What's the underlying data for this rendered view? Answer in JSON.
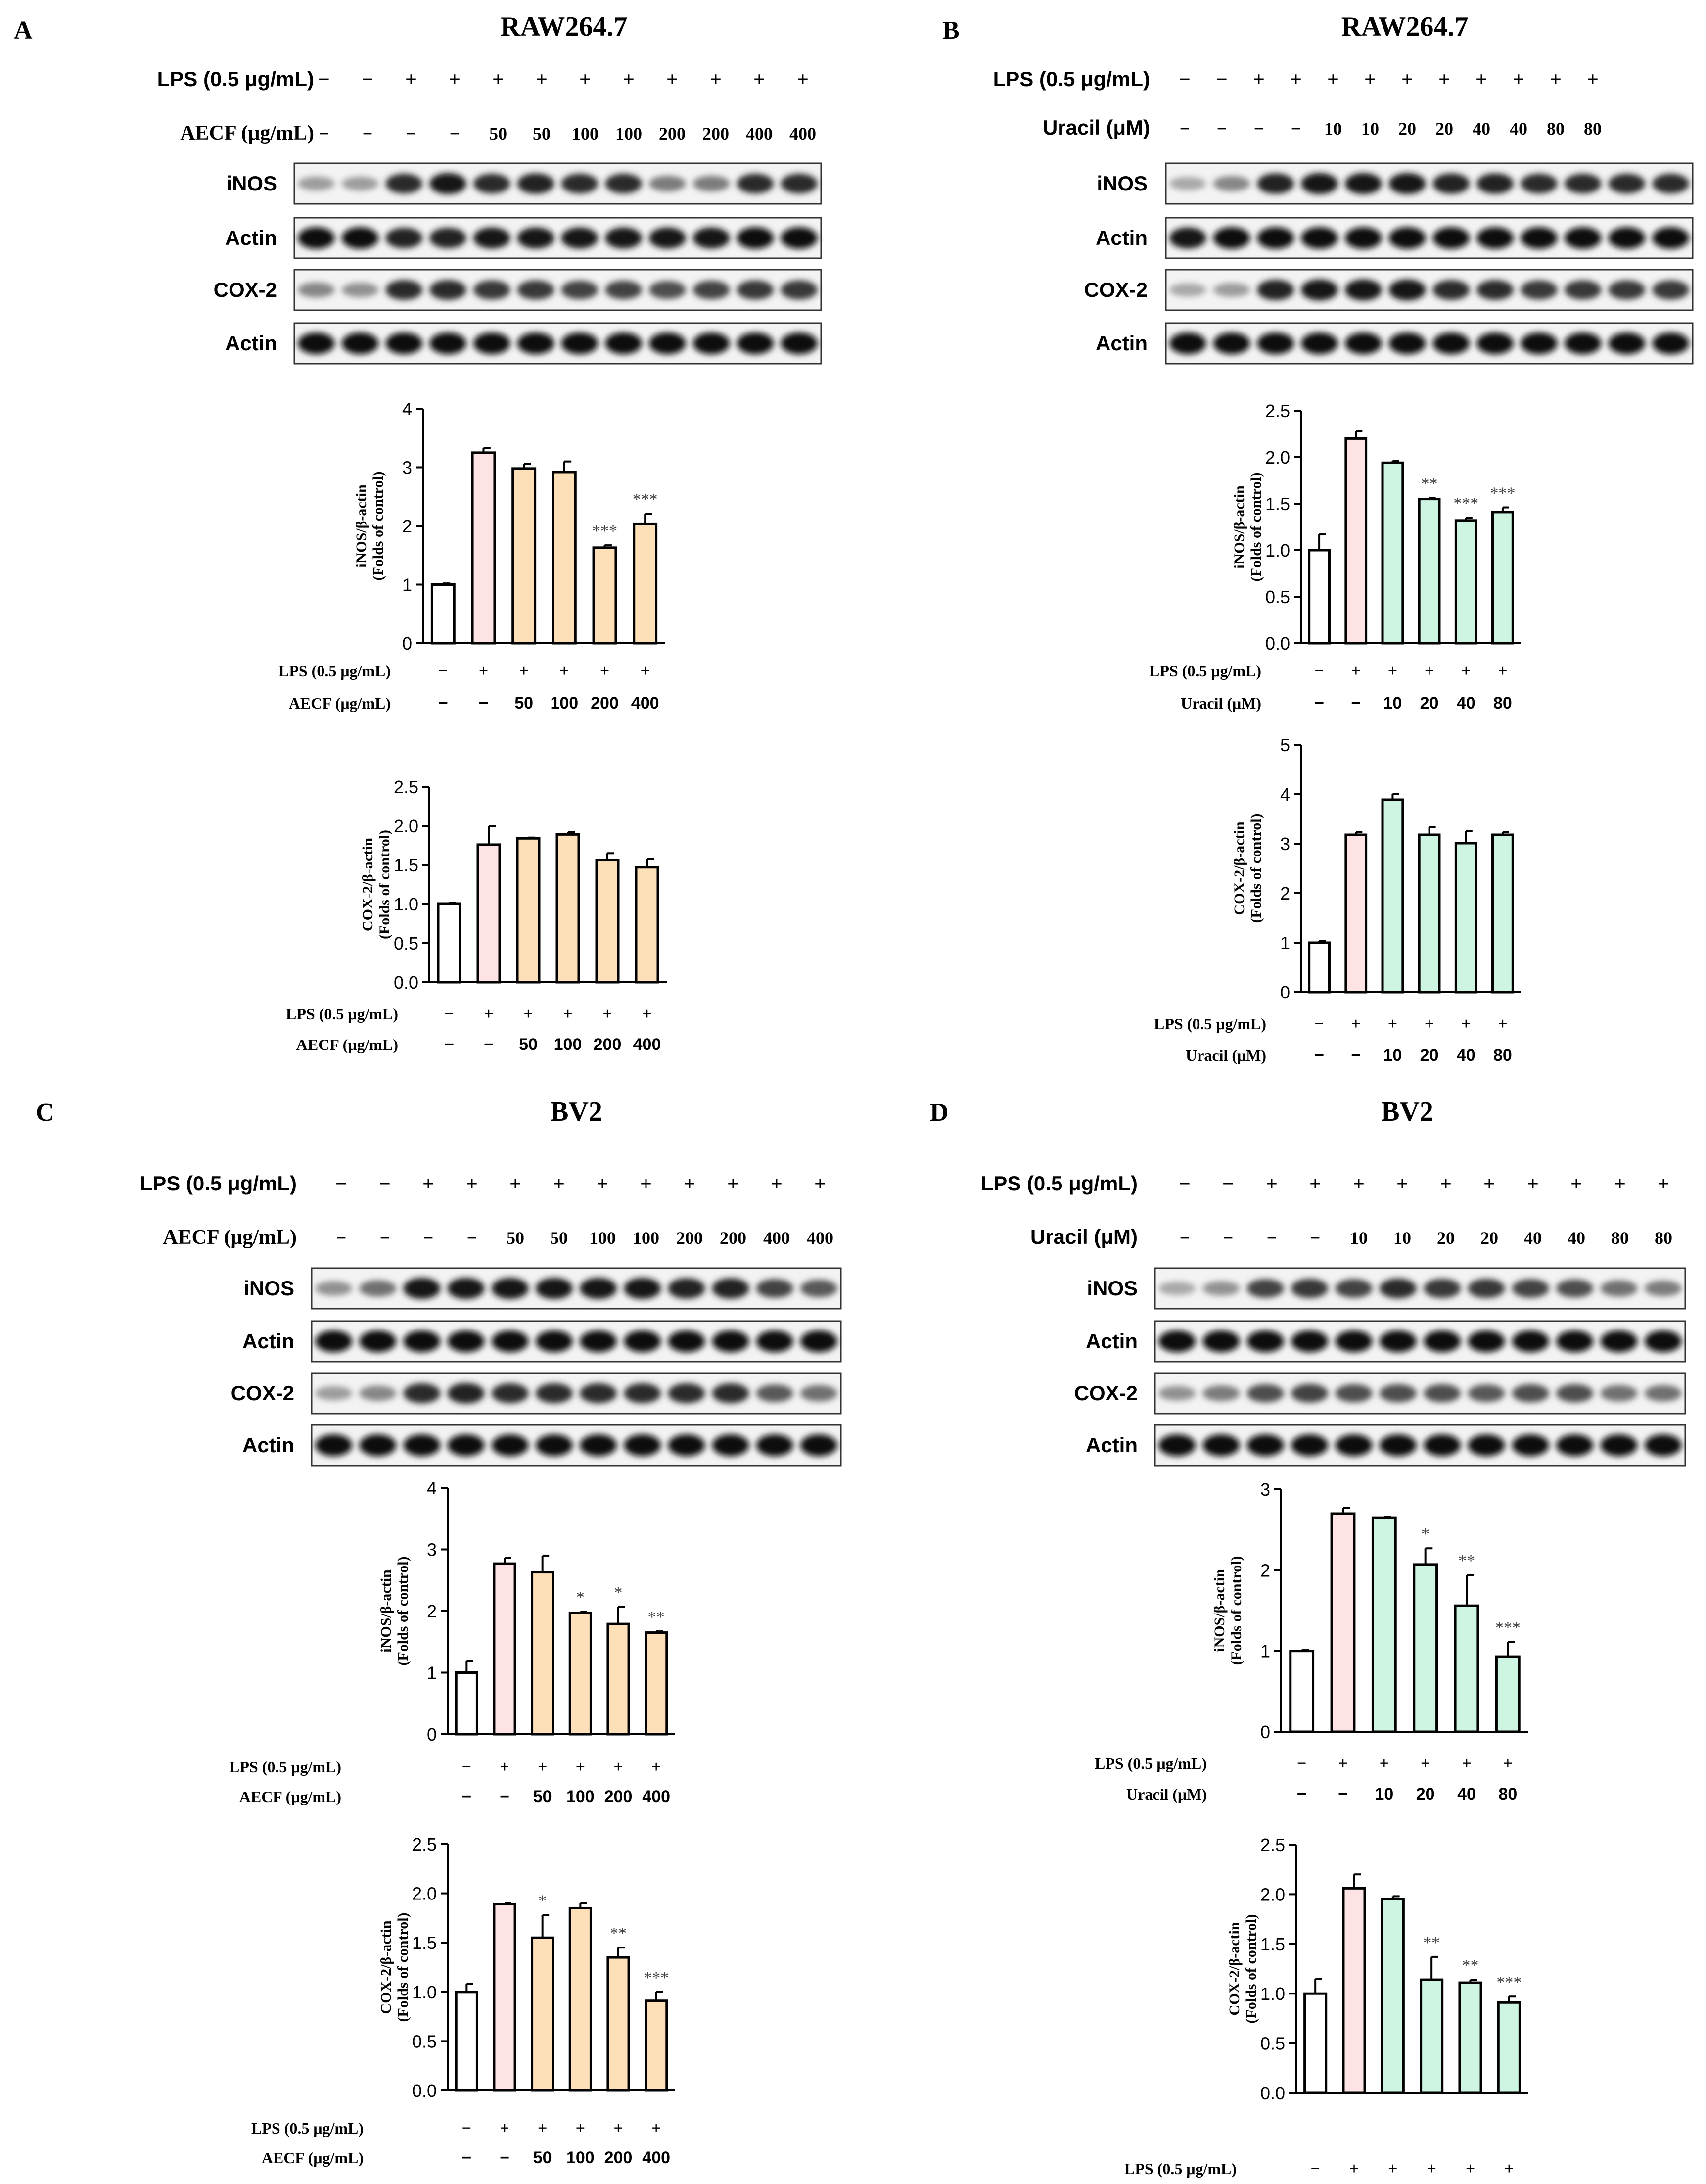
{
  "figure": {
    "panels": [
      {
        "letter": "A",
        "cell_line": "RAW264.7",
        "treatment_label": "AECF (μg/mL)",
        "lps_label": "LPS (0.5 μg/mL)",
        "blot_lps_row": [
          "−",
          "−",
          "+",
          "+",
          "+",
          "+",
          "+",
          "+",
          "+",
          "+",
          "+",
          "+"
        ],
        "blot_treat_row": [
          "−",
          "−",
          "−",
          "−",
          "50",
          "50",
          "100",
          "100",
          "200",
          "200",
          "400",
          "400"
        ],
        "blot_rows": [
          "iNOS",
          "Actin",
          "COX-2",
          "Actin"
        ],
        "x_lps": [
          "−",
          "+",
          "+",
          "+",
          "+",
          "+"
        ],
        "x_treat": [
          "−",
          "−",
          "50",
          "100",
          "200",
          "400"
        ],
        "x_lps_label": "LPS (0.5 μg/mL)",
        "x_treat_label": "AECF (μg/mL)"
      },
      {
        "letter": "B",
        "cell_line": "RAW264.7",
        "treatment_label": "Uracil (μM)",
        "lps_label": "LPS (0.5 μg/mL)",
        "blot_lps_row": [
          "−",
          "−",
          "+",
          "+",
          "+",
          "+",
          "+",
          "+",
          "+",
          "+",
          "+",
          "+"
        ],
        "blot_treat_row": [
          "−",
          "−",
          "−",
          "−",
          "10",
          "10",
          "20",
          "20",
          "40",
          "40",
          "80",
          "80"
        ],
        "blot_rows": [
          "iNOS",
          "Actin",
          "COX-2",
          "Actin"
        ],
        "x_lps": [
          "−",
          "+",
          "+",
          "+",
          "+",
          "+"
        ],
        "x_treat": [
          "−",
          "−",
          "10",
          "20",
          "40",
          "80"
        ],
        "x_lps_label": "LPS (0.5 μg/mL)",
        "x_treat_label": "Uracil (μM)"
      },
      {
        "letter": "C",
        "cell_line": "BV2",
        "treatment_label": "AECF (μg/mL)",
        "lps_label": "LPS (0.5 μg/mL)",
        "blot_lps_row": [
          "−",
          "−",
          "+",
          "+",
          "+",
          "+",
          "+",
          "+",
          "+",
          "+",
          "+",
          "+"
        ],
        "blot_treat_row": [
          "−",
          "−",
          "−",
          "−",
          "50",
          "50",
          "100",
          "100",
          "200",
          "200",
          "400",
          "400"
        ],
        "blot_rows": [
          "iNOS",
          "Actin",
          "COX-2",
          "Actin"
        ],
        "x_lps": [
          "−",
          "+",
          "+",
          "+",
          "+",
          "+"
        ],
        "x_treat": [
          "−",
          "−",
          "50",
          "100",
          "200",
          "400"
        ],
        "x_lps_label": "LPS (0.5 μg/mL)",
        "x_treat_label": "AECF (μg/mL)"
      },
      {
        "letter": "D",
        "cell_line": "BV2",
        "treatment_label": "Uracil (μM)",
        "lps_label": "LPS (0.5 μg/mL)",
        "blot_lps_row": [
          "−",
          "−",
          "+",
          "+",
          "+",
          "+",
          "+",
          "+",
          "+",
          "+",
          "+",
          "+"
        ],
        "blot_treat_row": [
          "−",
          "−",
          "−",
          "−",
          "10",
          "10",
          "20",
          "20",
          "40",
          "40",
          "80",
          "80"
        ],
        "blot_rows": [
          "iNOS",
          "Actin",
          "COX-2",
          "Actin"
        ],
        "x_lps": [
          "−",
          "+",
          "+",
          "+",
          "+",
          "+"
        ],
        "x_treat": [
          "−",
          "−",
          "10",
          "20",
          "40",
          "80"
        ],
        "x_lps_label": "LPS (0.5 μg/mL)",
        "x_treat_label": "Uracil (μM)"
      }
    ]
  },
  "colors": {
    "control": "#ffffff",
    "lps": "#fde3e3",
    "aecf": "#fde0b8",
    "uracil": "#cdf5e2",
    "axis": "#000000"
  },
  "chart_data": [
    {
      "id": "A-iNOS",
      "type": "bar",
      "ylabel": [
        "iNOS/β-actin",
        "(Folds of control)"
      ],
      "ylim": [
        0,
        4
      ],
      "ticks": [
        "0",
        "1",
        "2",
        "3",
        "4"
      ],
      "values": [
        1.0,
        3.25,
        2.98,
        2.92,
        1.63,
        2.03
      ],
      "errors": [
        0.02,
        0.08,
        0.08,
        0.18,
        0.04,
        0.18
      ],
      "sig": [
        "",
        "",
        "",
        "",
        "***",
        "***"
      ],
      "fill": "aecf"
    },
    {
      "id": "A-COX2",
      "type": "bar",
      "ylabel": [
        "COX-2/β-actin",
        "(Folds of control)"
      ],
      "ylim": [
        0,
        2.5
      ],
      "ticks": [
        "0.0",
        "0.5",
        "1.0",
        "1.5",
        "2.0",
        "2.5"
      ],
      "values": [
        1.0,
        1.76,
        1.84,
        1.89,
        1.56,
        1.47
      ],
      "errors": [
        0.01,
        0.24,
        0.01,
        0.03,
        0.09,
        0.1
      ],
      "sig": [
        "",
        "",
        "",
        "",
        "",
        ""
      ],
      "fill": "aecf"
    },
    {
      "id": "B-iNOS",
      "type": "bar",
      "ylabel": [
        "iNOS/β-actin",
        "(Folds of control)"
      ],
      "ylim": [
        0,
        2.5
      ],
      "ticks": [
        "0.0",
        "0.5",
        "1.0",
        "1.5",
        "2.0",
        "2.5"
      ],
      "values": [
        1.0,
        2.2,
        1.94,
        1.55,
        1.32,
        1.41
      ],
      "errors": [
        0.17,
        0.08,
        0.02,
        0.01,
        0.03,
        0.05
      ],
      "sig": [
        "",
        "",
        "",
        "**",
        "***",
        "***"
      ],
      "fill": "uracil"
    },
    {
      "id": "B-COX2",
      "type": "bar",
      "ylabel": [
        "COX-2/β-actin",
        "(Folds of control)"
      ],
      "ylim": [
        0,
        5
      ],
      "ticks": [
        "0",
        "1",
        "2",
        "3",
        "4",
        "5"
      ],
      "values": [
        1.0,
        3.18,
        3.89,
        3.18,
        3.01,
        3.18
      ],
      "errors": [
        0.03,
        0.05,
        0.12,
        0.16,
        0.24,
        0.05
      ],
      "sig": [
        "",
        "",
        "",
        "",
        "",
        ""
      ],
      "fill": "uracil"
    },
    {
      "id": "C-iNOS",
      "type": "bar",
      "ylabel": [
        "iNOS/β-actin",
        "(Folds of control)"
      ],
      "ylim": [
        0,
        4
      ],
      "ticks": [
        "0",
        "1",
        "2",
        "3",
        "4"
      ],
      "values": [
        1.0,
        2.77,
        2.63,
        1.97,
        1.79,
        1.65
      ],
      "errors": [
        0.19,
        0.09,
        0.27,
        0.02,
        0.28,
        0.02
      ],
      "sig": [
        "",
        "",
        "",
        "*",
        "*",
        "**"
      ],
      "fill": "aecf"
    },
    {
      "id": "C-COX2",
      "type": "bar",
      "ylabel": [
        "COX-2/β-actin",
        "(Folds of control)"
      ],
      "ylim": [
        0,
        2.5
      ],
      "ticks": [
        "0.0",
        "0.5",
        "1.0",
        "1.5",
        "2.0",
        "2.5"
      ],
      "values": [
        1.0,
        1.89,
        1.55,
        1.85,
        1.35,
        0.91
      ],
      "errors": [
        0.08,
        0.01,
        0.23,
        0.05,
        0.1,
        0.09
      ],
      "sig": [
        "",
        "",
        "*",
        "",
        "**",
        "***"
      ],
      "fill": "aecf"
    },
    {
      "id": "D-iNOS",
      "type": "bar",
      "ylabel": [
        "iNOS/β-actin",
        "(Folds of control)"
      ],
      "ylim": [
        0,
        3
      ],
      "ticks": [
        "0",
        "1",
        "2",
        "3"
      ],
      "values": [
        1.0,
        2.7,
        2.65,
        2.07,
        1.56,
        0.93
      ],
      "errors": [
        0.01,
        0.07,
        0.01,
        0.2,
        0.38,
        0.18
      ],
      "sig": [
        "",
        "",
        "",
        "*",
        "**",
        "***"
      ],
      "fill": "uracil"
    },
    {
      "id": "D-COX2",
      "type": "bar",
      "ylabel": [
        "COX-2/β-actin",
        "(Folds of control)"
      ],
      "ylim": [
        0,
        2.5
      ],
      "ticks": [
        "0.0",
        "0.5",
        "1.0",
        "1.5",
        "2.0",
        "2.5"
      ],
      "values": [
        1.0,
        2.06,
        1.95,
        1.14,
        1.11,
        0.91
      ],
      "errors": [
        0.15,
        0.14,
        0.03,
        0.23,
        0.03,
        0.06
      ],
      "sig": [
        "",
        "",
        "",
        "**",
        "**",
        "***"
      ],
      "fill": "uracil"
    }
  ]
}
